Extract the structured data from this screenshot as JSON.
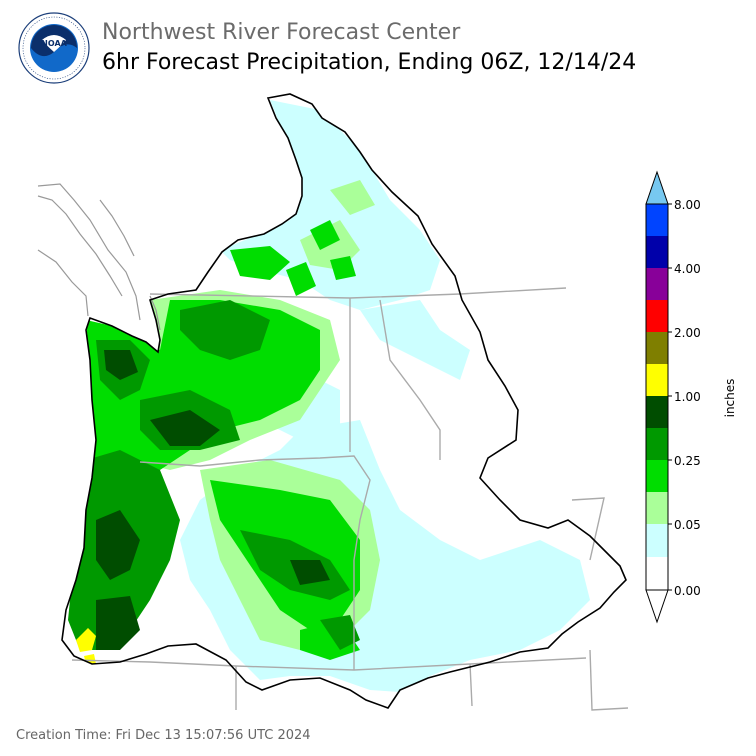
{
  "header": {
    "agency_logo_text": "NOAA",
    "logo_ring_text": "NATIONAL OCEANIC AND ATMOSPHERIC ADMINISTRATION · U.S. DEPARTMENT OF COMMERCE",
    "title": "Northwest River Forecast Center",
    "subtitle": "6hr Forecast Precipitation, Ending 06Z, 12/14/24"
  },
  "legend": {
    "unit_label": "inches",
    "tick_labels": [
      "0.00",
      "0.05",
      "0.25",
      "1.00",
      "2.00",
      "4.00",
      "8.00"
    ],
    "colors": [
      "#ffffff",
      "#ccffff",
      "#aaff99",
      "#00dd00",
      "#009900",
      "#004d00",
      "#ffff00",
      "#7f7f00",
      "#ff0000",
      "#880099",
      "#0000aa",
      "#0044ff",
      "#77c8f0"
    ]
  },
  "footer": {
    "creation_time": "Creation Time: Fri Dec 13 15:07:56 UTC 2024"
  }
}
